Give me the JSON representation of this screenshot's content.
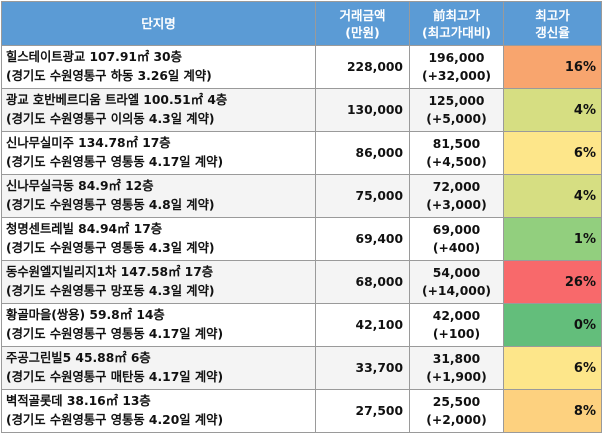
{
  "chart_data": {
    "type": "table",
    "columns": [
      {
        "line1": "단지명",
        "line2": ""
      },
      {
        "line1": "거래금액",
        "line2": "(만원)"
      },
      {
        "line1": "前최고가",
        "line2": "(최고가대비)"
      },
      {
        "line1": "최고가",
        "line2": "갱신율"
      }
    ],
    "rows": [
      {
        "name": "힐스테이트광교 107.91㎡ 30층",
        "location": "(경기도 수원영통구 하동 3.26일 계약)",
        "price": "228,000",
        "prev_high": "196,000",
        "diff": "(+32,000)",
        "rate": "16%",
        "rate_value": 16,
        "rate_color": "#f8a56e"
      },
      {
        "name": "광교 호반베르디움 트라엘 100.51㎡ 4층",
        "location": "(경기도 수원영통구 이의동 4.3일 계약)",
        "price": "130,000",
        "prev_high": "125,000",
        "diff": "(+5,000)",
        "rate": "4%",
        "rate_value": 4,
        "rate_color": "#d6de82"
      },
      {
        "name": "신나무실미주 134.78㎡ 17층",
        "location": "(경기도 수원영통구 영통동 4.17일 계약)",
        "price": "86,000",
        "prev_high": "81,500",
        "diff": "(+4,500)",
        "rate": "6%",
        "rate_value": 6,
        "rate_color": "#fde68a"
      },
      {
        "name": "신나무실극동 84.9㎡ 12층",
        "location": "(경기도 수원영통구 영통동 4.8일 계약)",
        "price": "75,000",
        "prev_high": "72,000",
        "diff": "(+3,000)",
        "rate": "4%",
        "rate_value": 4,
        "rate_color": "#d6de82"
      },
      {
        "name": "청명센트레빌 84.94㎡ 17층",
        "location": "(경기도 수원영통구 영통동 4.3일 계약)",
        "price": "69,400",
        "prev_high": "69,000",
        "diff": "(+400)",
        "rate": "1%",
        "rate_value": 1,
        "rate_color": "#92cf7e"
      },
      {
        "name": "동수원엘지빌리지1차 147.58㎡ 17층",
        "location": "(경기도 수원영통구 망포동 4.3일 계약)",
        "price": "68,000",
        "prev_high": "54,000",
        "diff": "(+14,000)",
        "rate": "26%",
        "rate_value": 26,
        "rate_color": "#f8696b"
      },
      {
        "name": "황골마을(쌍용) 59.8㎡ 14층",
        "location": "(경기도 수원영통구 영통동 4.17일 계약)",
        "price": "42,100",
        "prev_high": "42,000",
        "diff": "(+100)",
        "rate": "0%",
        "rate_value": 0,
        "rate_color": "#63be7b"
      },
      {
        "name": "주공그린빌5 45.88㎡ 6층",
        "location": "(경기도 수원영통구 매탄동 4.17일 계약)",
        "price": "33,700",
        "prev_high": "31,800",
        "diff": "(+1,900)",
        "rate": "6%",
        "rate_value": 6,
        "rate_color": "#fde68a"
      },
      {
        "name": "벽적골롯데 38.16㎡ 13층",
        "location": "(경기도 수원영통구 영통동 4.20일 계약)",
        "price": "27,500",
        "prev_high": "25,500",
        "diff": "(+2,000)",
        "rate": "8%",
        "rate_value": 8,
        "rate_color": "#fdd17f"
      }
    ],
    "header_color": "#5b9bd5"
  }
}
